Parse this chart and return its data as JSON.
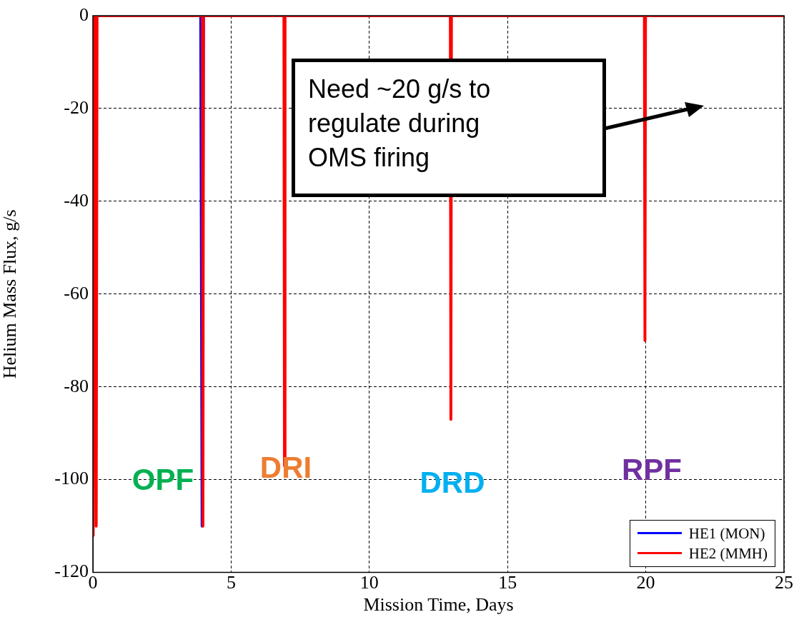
{
  "chart_data": {
    "type": "line",
    "xlabel": "Mission Time, Days",
    "ylabel": "Helium Mass Flux, g/s",
    "xlim": [
      0,
      25
    ],
    "xticks": [
      0,
      5,
      10,
      15,
      20,
      25
    ],
    "ylim": [
      -120,
      0
    ],
    "yticks": [
      -120,
      -100,
      -80,
      -60,
      -40,
      -20,
      0
    ],
    "grid": true,
    "legend": "bottom right",
    "marker": "none",
    "line_style": "solid",
    "series": [
      {
        "name": "HE1 (MON)",
        "color": "#0000ff",
        "x": [
          3.9,
          3.95,
          4.0
        ],
        "values": [
          0,
          -110,
          0
        ]
      },
      {
        "name": "HE2 (MMH)",
        "color": "#ff0000",
        "x": [
          0,
          0.01,
          0.04,
          0.1,
          0.12,
          0.15,
          3.96,
          3.98,
          4.0,
          6.91,
          6.93,
          6.95,
          12.93,
          12.95,
          12.97,
          19.95,
          19.97,
          19.99,
          25
        ],
        "values": [
          0,
          -112,
          0,
          0,
          -110,
          0,
          0,
          -110,
          0,
          0,
          -97,
          0,
          0,
          -87,
          0,
          0,
          -70,
          0,
          0
        ]
      }
    ],
    "annotations": [
      "Need ~20 g/s to regulate during OMS firing",
      "OPF",
      "DRI",
      "DRD",
      "RPF"
    ]
  }
}
